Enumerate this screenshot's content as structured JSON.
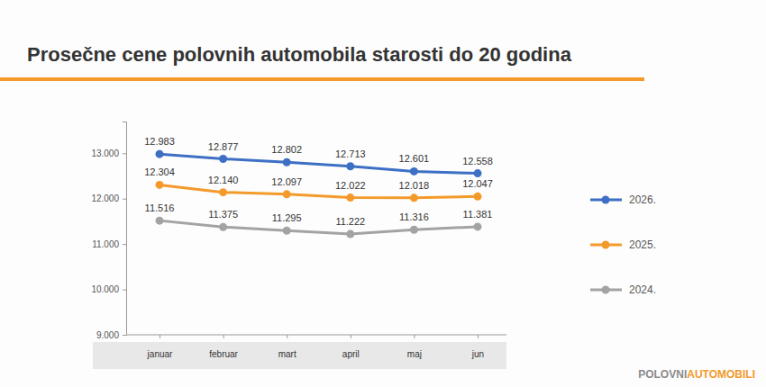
{
  "chart_data": {
    "type": "line",
    "title": "Prosečne cene polovnih automobila starosti do 20 godina",
    "categories": [
      "januar",
      "februar",
      "mart",
      "april",
      "maj",
      "jun"
    ],
    "series": [
      {
        "name": "2026.",
        "color": "#3d6fc4",
        "marker": "circle",
        "values": [
          12983,
          12877,
          12802,
          12713,
          12601,
          12558
        ],
        "value_labels": [
          "12.983",
          "12.877",
          "12.802",
          "12.713",
          "12.601",
          "12.558"
        ]
      },
      {
        "name": "2025.",
        "color": "#f39a2b",
        "marker": "circle",
        "values": [
          12304,
          12140,
          12097,
          12022,
          12018,
          12047
        ],
        "value_labels": [
          "12.304",
          "12.140",
          "12.097",
          "12.022",
          "12.018",
          "12.047"
        ]
      },
      {
        "name": "2024.",
        "color": "#a3a3a3",
        "marker": "circle",
        "values": [
          11516,
          11375,
          11295,
          11222,
          11316,
          11381
        ],
        "value_labels": [
          "11.516",
          "11.375",
          "11.295",
          "11.222",
          "11.316",
          "11.381"
        ]
      }
    ],
    "ylim": [
      9000,
      13700
    ],
    "yticks": [
      {
        "value": 9000,
        "label": "9.000"
      },
      {
        "value": 10000,
        "label": "10.000"
      },
      {
        "value": 11000,
        "label": "11.000"
      },
      {
        "value": 12000,
        "label": "12.000"
      },
      {
        "value": 13000,
        "label": "13.000"
      }
    ],
    "grid": false,
    "legend": "right",
    "data_labels": true,
    "annotations": [
      "POLOVNI",
      "AUTOMOBILI"
    ]
  }
}
